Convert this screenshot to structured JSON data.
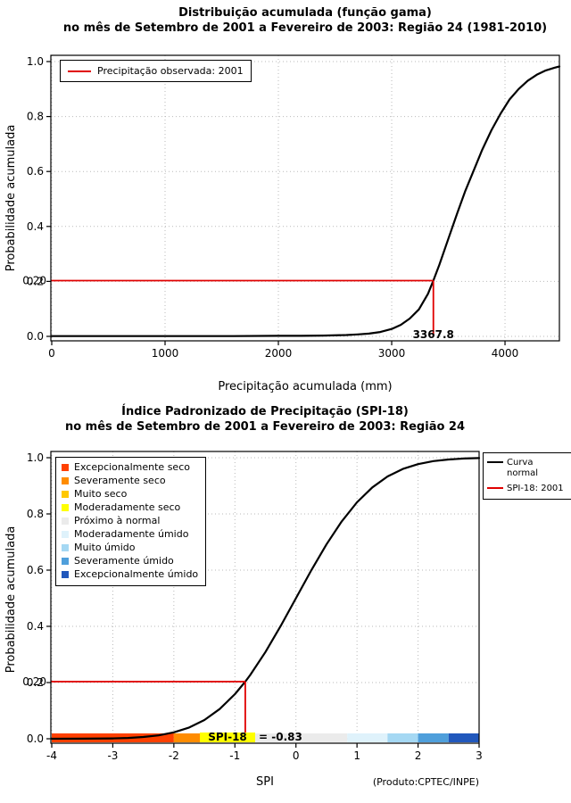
{
  "chart_data": [
    {
      "name": "gamma-cumulative-distribution",
      "type": "line",
      "title1": "Distribuição acumulada (função gama)",
      "title2": "no mês de Setembro de 2001 a Fevereiro de 2003: Região 24 (1981-2010)",
      "xlabel": "Precipitação acumulada (mm)",
      "ylabel": "Probabilidade acumulada",
      "xlim": [
        0,
        4480
      ],
      "ylim": [
        0,
        1
      ],
      "xticks": [
        0,
        1000,
        2000,
        3000,
        4000
      ],
      "yticks": [
        0,
        0.2,
        0.4,
        0.6,
        0.8,
        1
      ],
      "grid": true,
      "legend": [
        {
          "label": "Precipitação observada: 2001",
          "color": "#E00000",
          "type": "line"
        }
      ],
      "series": [
        {
          "name": "Distribuição gama acumulada",
          "color": "#000000",
          "points": [
            [
              0,
              0.001
            ],
            [
              800,
              0.001
            ],
            [
              1600,
              0.001
            ],
            [
              2000,
              0.002
            ],
            [
              2200,
              0.002
            ],
            [
              2400,
              0.003
            ],
            [
              2600,
              0.005
            ],
            [
              2700,
              0.007
            ],
            [
              2800,
              0.01
            ],
            [
              2900,
              0.016
            ],
            [
              3000,
              0.027
            ],
            [
              3080,
              0.042
            ],
            [
              3160,
              0.065
            ],
            [
              3240,
              0.098
            ],
            [
              3320,
              0.155
            ],
            [
              3367.8,
              0.203
            ],
            [
              3420,
              0.26
            ],
            [
              3500,
              0.355
            ],
            [
              3580,
              0.45
            ],
            [
              3650,
              0.53
            ],
            [
              3720,
              0.6
            ],
            [
              3800,
              0.68
            ],
            [
              3880,
              0.75
            ],
            [
              3960,
              0.81
            ],
            [
              4040,
              0.862
            ],
            [
              4120,
              0.9
            ],
            [
              4200,
              0.93
            ],
            [
              4280,
              0.952
            ],
            [
              4360,
              0.968
            ],
            [
              4440,
              0.978
            ],
            [
              4480,
              0.982
            ]
          ]
        }
      ],
      "reference": {
        "prob": 0.203,
        "prob_label": "0.20",
        "value": 3367.8,
        "value_label": "3367.8",
        "color": "#E00000"
      }
    },
    {
      "name": "spi-cumulative-distribution",
      "type": "line",
      "title1": "Índice Padronizado de Precipitação (SPI-18)",
      "title2": "no mês de Setembro de 2001 a Fevereiro de 2003: Região 24",
      "xlabel": "SPI",
      "ylabel": "Probabilidade acumulada",
      "credit": "(Produto:CPTEC/INPE)",
      "xlim": [
        -4,
        3
      ],
      "ylim": [
        0,
        1
      ],
      "xticks": [
        -4,
        -3,
        -2,
        -1,
        0,
        1,
        2,
        3
      ],
      "yticks": [
        0,
        0.2,
        0.4,
        0.6,
        0.8,
        1
      ],
      "grid": true,
      "line_legend": [
        {
          "label": "Curva normal",
          "color": "#000000"
        },
        {
          "label": "SPI-18: 2001",
          "color": "#E00000"
        }
      ],
      "categories": [
        {
          "label": "Excepcionalmente seco",
          "color": "#FF4000",
          "from": -4,
          "to": -2
        },
        {
          "label": "Severamente seco",
          "color": "#FF8C00",
          "from": -2,
          "to": -1.5
        },
        {
          "label": "Muito seco",
          "color": "#FFC800",
          "from": -1.5,
          "to": -1
        },
        {
          "label": "Moderadamente seco",
          "color": "#FFFF00",
          "from": -1,
          "to": -0.84
        },
        {
          "label": "Próximo à normal",
          "color": "#EBEBEB",
          "from": -0.84,
          "to": 0.84
        },
        {
          "label": "Moderadamente úmido",
          "color": "#DFF2FB",
          "from": 0.84,
          "to": 1.5
        },
        {
          "label": "Muito úmido",
          "color": "#A5D8F3",
          "from": 1.5,
          "to": 2
        },
        {
          "label": "Severamente úmido",
          "color": "#4F9FDB",
          "from": 2,
          "to": 2.5
        },
        {
          "label": "Excepcionalmente úmido",
          "color": "#2158BC",
          "from": 2.5,
          "to": 3
        }
      ],
      "series": [
        {
          "name": "Curva normal",
          "color": "#000000",
          "points": [
            [
              -4,
              3e-05
            ],
            [
              -3.5,
              0.0002
            ],
            [
              -3,
              0.0013
            ],
            [
              -2.75,
              0.003
            ],
            [
              -2.5,
              0.0062
            ],
            [
              -2.25,
              0.0122
            ],
            [
              -2,
              0.0228
            ],
            [
              -1.75,
              0.0401
            ],
            [
              -1.5,
              0.0668
            ],
            [
              -1.25,
              0.1056
            ],
            [
              -1,
              0.1587
            ],
            [
              -0.83,
              0.2033
            ],
            [
              -0.75,
              0.2266
            ],
            [
              -0.5,
              0.3085
            ],
            [
              -0.25,
              0.4013
            ],
            [
              0,
              0.5
            ],
            [
              0.25,
              0.5987
            ],
            [
              0.5,
              0.6915
            ],
            [
              0.75,
              0.7734
            ],
            [
              1,
              0.8413
            ],
            [
              1.25,
              0.8944
            ],
            [
              1.5,
              0.9332
            ],
            [
              1.75,
              0.9599
            ],
            [
              2,
              0.9772
            ],
            [
              2.25,
              0.9878
            ],
            [
              2.5,
              0.9938
            ],
            [
              2.75,
              0.997
            ],
            [
              3,
              0.9987
            ]
          ]
        }
      ],
      "reference": {
        "prob": 0.2033,
        "prob_label": "0.20",
        "value": -0.83,
        "value_label": "",
        "color": "#E00000"
      },
      "bar_annotation": {
        "highlight_text": "SPI-18",
        "highlight_bg": "#FFFF00",
        "rest_text": "= -0.83",
        "full_text": "SPI-18 = -0.83"
      }
    }
  ]
}
